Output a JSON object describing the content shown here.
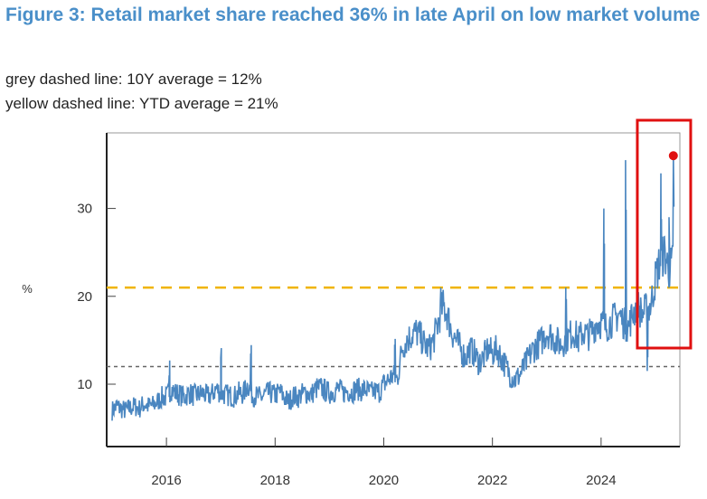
{
  "header": {
    "title": "Figure 3: Retail market share reached 36% in late April on low market volume",
    "note1": "grey dashed line: 10Y average = 12%",
    "note2": "yellow dashed line: YTD average = 21%"
  },
  "chart_data": {
    "type": "line",
    "title": "Figure 3: Retail market share reached 36% in late April on low market volume",
    "xlabel": "",
    "ylabel": "%",
    "xlim": [
      2014.9,
      2025.45
    ],
    "ylim": [
      2.9,
      38.6
    ],
    "xticks": [
      2016,
      2018,
      2020,
      2022,
      2024
    ],
    "yticks": [
      10,
      20,
      30
    ],
    "grid": false,
    "series_color": "#4a86c0",
    "start_year": 2015.0,
    "step_years": 0.08333,
    "monthly_values": [
      7,
      7.5,
      7.2,
      7,
      7.3,
      7.5,
      7.2,
      7.8,
      7.5,
      7.6,
      8.0,
      8.5,
      8.5,
      9.5,
      9,
      8.8,
      8.5,
      9.0,
      8.7,
      8.8,
      9.0,
      8.6,
      8.8,
      9.5,
      9.0,
      8.8,
      8.7,
      8.6,
      9,
      8.9,
      10,
      8.8,
      8.6,
      8.5,
      8.9,
      9.0,
      8.7,
      9.2,
      8.5,
      8.0,
      8.7,
      8.5,
      8.9,
      9.0,
      8.8,
      9.5,
      9.6,
      9.3,
      9.0,
      9.2,
      9.5,
      9.0,
      9.3,
      9.1,
      9.5,
      9.3,
      9.4,
      9.0,
      9.2,
      9.1,
      10,
      10.5,
      11,
      10.5,
      14,
      15,
      15.5,
      16,
      15.5,
      14.5,
      14,
      15,
      17,
      19,
      18,
      16,
      15,
      14,
      13,
      14,
      13.5,
      12.5,
      13,
      14,
      13.5,
      14,
      13,
      12,
      11,
      10.5,
      11,
      12,
      13,
      14,
      14.5,
      15,
      16,
      15.5,
      15,
      14.5,
      15,
      15.5,
      16,
      15,
      16,
      15.5,
      16,
      17,
      17,
      16.5,
      17,
      17.5,
      18,
      17,
      16.5,
      18,
      19,
      18,
      18.5,
      19,
      22,
      24,
      25,
      23,
      24
    ],
    "spikes": [
      [
        2016.05,
        11
      ],
      [
        2017.0,
        13
      ],
      [
        2017.55,
        13.5
      ],
      [
        2020.2,
        14.5
      ],
      [
        2021.05,
        21
      ],
      [
        2023.35,
        21
      ],
      [
        2024.05,
        30
      ],
      [
        2024.45,
        35.5
      ],
      [
        2024.85,
        11.5
      ],
      [
        2025.1,
        34
      ],
      [
        2025.25,
        29
      ],
      [
        2025.33,
        36
      ]
    ],
    "reference_lines": [
      {
        "name": "10Y average",
        "value": 12,
        "color": "#666666"
      },
      {
        "name": "YTD average",
        "value": 21,
        "color": "#f0b400"
      }
    ],
    "highlight_point": {
      "x": 2025.33,
      "y": 36,
      "color": "#e01010"
    },
    "highlight_box": {
      "x_range": [
        2024.95,
        2025.45
      ],
      "y_range": [
        14,
        37.5
      ],
      "color": "#e01010"
    }
  }
}
